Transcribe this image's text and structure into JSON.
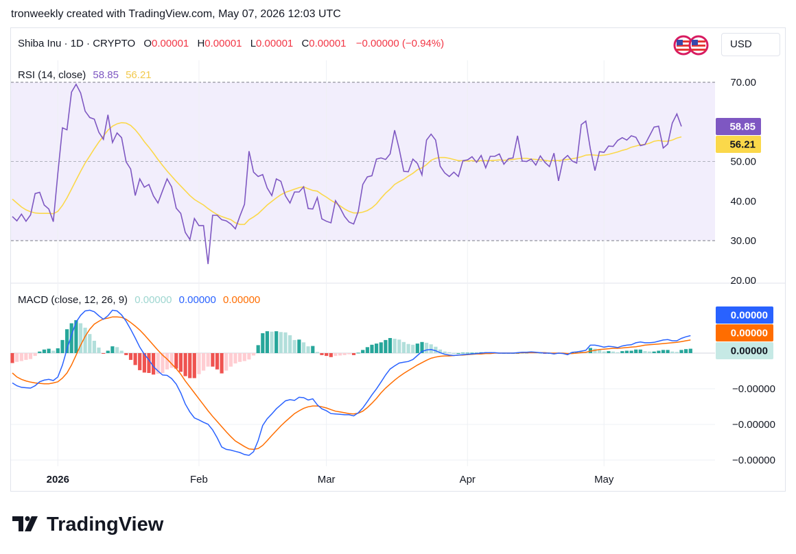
{
  "caption": "tronweekly created with TradingView.com, May 07, 2026 12:03 UTC",
  "header": {
    "symbol": "Shiba Inu · 1D · CRYPTO",
    "o_label": "O",
    "o_value": "0.00001",
    "h_label": "H",
    "h_value": "0.00001",
    "l_label": "L",
    "l_value": "0.00001",
    "c_label": "C",
    "c_value": "0.00001",
    "change": "−0.00000 (−0.94%)",
    "currency": "USD"
  },
  "colors": {
    "rsi": "#7e57c2",
    "rsi_ma": "#fbd84a",
    "rsi_band": "#f2eefc",
    "macd": "#2962ff",
    "signal": "#ff6d00",
    "hist_up_strong": "#26a69a",
    "hist_up_weak": "#b2dfdb",
    "hist_down_strong": "#ef5350",
    "hist_down_weak": "#ffcdd2",
    "negative": "#f23645"
  },
  "chart_data": [
    {
      "type": "line",
      "title": "RSI (14, close)",
      "legend_values": [
        "58.85",
        "56.21"
      ],
      "y_ticks": [
        "70.00",
        "50.00",
        "40.00",
        "30.00",
        "20.00"
      ],
      "ylim": [
        18,
        73
      ],
      "bands": [
        30,
        50,
        70
      ],
      "last_labels": [
        "58.85",
        "56.21"
      ],
      "series": [
        {
          "values": [
            36.1,
            35,
            36.7,
            34.9,
            36.5,
            41.9,
            42.2,
            39,
            38,
            34.8,
            47,
            58.5,
            58,
            67.5,
            69.5,
            67.3,
            62.7,
            61.1,
            60.7,
            57.4,
            55.6,
            61.8,
            54.8,
            57.2,
            56,
            49.9,
            48.1,
            41.4,
            45.6,
            43.5,
            44.2,
            41.3,
            39.5,
            42.6,
            45.6,
            43.6,
            38.2,
            36.9,
            32.1,
            30.3,
            35.6,
            33.8,
            33.8,
            24.1,
            36.4,
            36.4,
            35.3,
            35,
            34.2,
            33,
            36.2,
            39.2,
            52.6,
            47.3,
            46.2,
            46.7,
            43.3,
            41.4,
            45.6,
            45,
            41.3,
            39.5,
            42.3,
            42.3,
            43.6,
            38.1,
            38,
            40.9,
            35.5,
            34.9,
            34.5,
            40.1,
            38.3,
            36.1,
            34.7,
            34.2,
            37.4,
            44.2,
            46.1,
            46.4,
            50.6,
            50.9,
            50.5,
            51.9,
            57.9,
            53.1,
            47.5,
            47.4,
            50.6,
            49.5,
            46.6,
            55.4,
            56.9,
            55.4,
            48.8,
            47.1,
            46.2,
            47.3,
            46.2,
            50.2,
            50.4,
            51.2,
            49.8,
            51.5,
            48.4,
            51.3,
            51.3,
            51.9,
            49.3,
            50.7,
            50.9,
            56.5,
            50.1,
            50,
            50.6,
            49.1,
            51.4,
            49.8,
            48.7,
            52.1,
            45.1,
            50.5,
            51.5,
            50.1,
            49.6,
            59.3,
            60.2,
            53.2,
            47.7,
            52.5,
            52.3,
            53.9,
            53.8,
            55.3,
            56,
            55.4,
            56.5,
            56.1,
            54,
            54.3,
            56.5,
            58.7,
            58.9,
            53.4,
            54.4,
            59.7,
            62,
            58.85
          ]
        },
        {
          "values": [
            40.5,
            39.5,
            38.5,
            37.8,
            37.3,
            37,
            36.9,
            36.9,
            36.9,
            36.8,
            37.4,
            38.9,
            40.8,
            43,
            45.3,
            47.5,
            49.6,
            51.4,
            53.2,
            54.9,
            56.4,
            57.9,
            58.9,
            59.5,
            59.8,
            59.7,
            59.1,
            58,
            56.6,
            55,
            53.6,
            52.1,
            50.5,
            49,
            47.6,
            46.3,
            45,
            43.8,
            42.6,
            41.4,
            40.4,
            39.7,
            39,
            38.1,
            37.3,
            36.6,
            36.1,
            35.7,
            35.3,
            34.5,
            34.1,
            34.1,
            35.3,
            36,
            36.8,
            37.9,
            39,
            39.9,
            40.8,
            41.6,
            42.2,
            42.6,
            43,
            43.4,
            43.6,
            43.1,
            42.7,
            42.5,
            41.7,
            41,
            40.2,
            39.5,
            38.8,
            38,
            37.4,
            37,
            37,
            37.2,
            37.6,
            38.3,
            39.3,
            40.7,
            42,
            43,
            44.2,
            44.9,
            45.5,
            46.3,
            47,
            47.9,
            48.4,
            49.2,
            50.3,
            50.8,
            51,
            51,
            50.8,
            50.5,
            50.2,
            50.2,
            50.1,
            50.2,
            50.1,
            50.2,
            50.2,
            50.2,
            50.3,
            50.4,
            50.3,
            50.4,
            50.5,
            50.7,
            50.8,
            50.8,
            50.6,
            50.5,
            50.4,
            50.3,
            50.1,
            50.3,
            50.2,
            50.4,
            50.5,
            50.7,
            50.9,
            51.2,
            51.6,
            51.7,
            51.6,
            51.5,
            51.6,
            51.8,
            52.1,
            52.4,
            52.8,
            53.1,
            53.6,
            53.9,
            54.2,
            54.3,
            54.6,
            55.1,
            55.3,
            55.1,
            55.1,
            55.4,
            55.9,
            56.21
          ]
        }
      ]
    },
    {
      "type": "line",
      "title": "MACD (close, 12, 26, 9)",
      "legend_values": [
        "0.00000",
        "0.00000",
        "0.00000"
      ],
      "y_ticks": [
        "−0.00000",
        "−0.00000",
        "−0.00000"
      ],
      "zero_label": "0.00000",
      "last_labels": [
        "0.00000",
        "0.00000",
        "0.00000"
      ],
      "x_ticks": [
        {
          "label": "2026",
          "index": 10
        },
        {
          "label": "Feb",
          "index": 41
        },
        {
          "label": "Mar",
          "index": 69
        },
        {
          "label": "Apr",
          "index": 100
        },
        {
          "label": "May",
          "index": 130
        }
      ],
      "units": "×1e-8 (approx.)",
      "series": [
        {
          "values": [
            -0.75,
            -0.82,
            -0.86,
            -0.87,
            -0.88,
            -0.82,
            -0.72,
            -0.68,
            -0.66,
            -0.69,
            -0.6,
            -0.3,
            0.1,
            0.45,
            0.78,
            0.95,
            1.06,
            1.08,
            1.04,
            0.94,
            0.85,
            0.94,
            1.08,
            1.06,
            0.96,
            0.8,
            0.6,
            0.38,
            0.15,
            -0.03,
            -0.17,
            -0.34,
            -0.45,
            -0.55,
            -0.56,
            -0.64,
            -0.78,
            -1.0,
            -1.28,
            -1.48,
            -1.63,
            -1.68,
            -1.74,
            -1.79,
            -1.93,
            -2.13,
            -2.36,
            -2.42,
            -2.44,
            -2.47,
            -2.5,
            -2.55,
            -2.57,
            -2.48,
            -2.2,
            -1.82,
            -1.65,
            -1.53,
            -1.4,
            -1.3,
            -1.2,
            -1.17,
            -1.19,
            -1.11,
            -1.12,
            -1.18,
            -1.15,
            -1.3,
            -1.4,
            -1.45,
            -1.52,
            -1.53,
            -1.54,
            -1.55,
            -1.55,
            -1.58,
            -1.5,
            -1.38,
            -1.22,
            -1.05,
            -0.9,
            -0.73,
            -0.55,
            -0.4,
            -0.32,
            -0.25,
            -0.23,
            -0.21,
            -0.16,
            -0.06,
            0.04,
            0.08,
            0.09,
            0.06,
            0.01,
            -0.03,
            -0.05,
            -0.06,
            -0.05,
            -0.04,
            -0.03,
            -0.02,
            -0.01,
            0.0,
            0.01,
            0.01,
            0.01,
            0.0,
            0.0,
            0.0,
            0.0,
            0.01,
            0.02,
            0.02,
            0.03,
            0.02,
            0.01,
            0.0,
            0.0,
            -0.02,
            0.0,
            -0.01,
            -0.04,
            0.02,
            0.03,
            0.05,
            0.07,
            0.2,
            0.2,
            0.18,
            0.15,
            0.17,
            0.16,
            0.14,
            0.18,
            0.2,
            0.21,
            0.26,
            0.28,
            0.26,
            0.26,
            0.27,
            0.3,
            0.33,
            0.34,
            0.31,
            0.31,
            0.37,
            0.41,
            0.44
          ]
        },
        {
          "values": [
            -0.5,
            -0.6,
            -0.66,
            -0.7,
            -0.73,
            -0.75,
            -0.76,
            -0.77,
            -0.77,
            -0.75,
            -0.72,
            -0.63,
            -0.5,
            -0.3,
            -0.05,
            0.2,
            0.42,
            0.6,
            0.73,
            0.8,
            0.86,
            0.88,
            0.91,
            0.91,
            0.9,
            0.85,
            0.77,
            0.68,
            0.58,
            0.46,
            0.33,
            0.2,
            0.07,
            -0.05,
            -0.15,
            -0.27,
            -0.39,
            -0.53,
            -0.7,
            -0.85,
            -1.0,
            -1.15,
            -1.3,
            -1.45,
            -1.59,
            -1.72,
            -1.85,
            -1.98,
            -2.1,
            -2.21,
            -2.28,
            -2.35,
            -2.41,
            -2.42,
            -2.4,
            -2.32,
            -2.2,
            -2.07,
            -1.95,
            -1.83,
            -1.72,
            -1.62,
            -1.52,
            -1.45,
            -1.39,
            -1.35,
            -1.33,
            -1.33,
            -1.35,
            -1.38,
            -1.42,
            -1.46,
            -1.48,
            -1.5,
            -1.52,
            -1.53,
            -1.51,
            -1.46,
            -1.37,
            -1.26,
            -1.14,
            -1.0,
            -0.88,
            -0.78,
            -0.68,
            -0.59,
            -0.51,
            -0.44,
            -0.37,
            -0.3,
            -0.24,
            -0.18,
            -0.13,
            -0.1,
            -0.08,
            -0.07,
            -0.07,
            -0.06,
            -0.05,
            -0.05,
            -0.04,
            -0.03,
            -0.02,
            -0.02,
            -0.01,
            -0.01,
            0.0,
            0.0,
            0.0,
            0.0,
            0.0,
            0.0,
            0.01,
            0.01,
            0.01,
            0.01,
            0.01,
            0.01,
            0.0,
            0.0,
            0.0,
            0.0,
            -0.01,
            -0.01,
            0.0,
            0.01,
            0.02,
            0.05,
            0.07,
            0.09,
            0.1,
            0.11,
            0.12,
            0.12,
            0.13,
            0.14,
            0.15,
            0.16,
            0.18,
            0.2,
            0.21,
            0.22,
            0.23,
            0.24,
            0.25,
            0.26,
            0.27,
            0.29,
            0.31,
            0.33
          ]
        },
        {
          "type": "bar",
          "values": [
            -0.25,
            -0.22,
            -0.2,
            -0.17,
            -0.15,
            -0.07,
            0.04,
            0.09,
            0.11,
            0.06,
            0.12,
            0.33,
            0.6,
            0.75,
            0.83,
            0.75,
            0.64,
            0.48,
            0.31,
            0.14,
            -0.01,
            0.06,
            0.17,
            0.15,
            0.06,
            -0.05,
            -0.17,
            -0.3,
            -0.43,
            -0.49,
            -0.5,
            -0.54,
            -0.52,
            -0.5,
            -0.41,
            -0.37,
            -0.39,
            -0.47,
            -0.58,
            -0.63,
            -0.63,
            -0.53,
            -0.44,
            -0.34,
            -0.34,
            -0.41,
            -0.51,
            -0.44,
            -0.34,
            -0.26,
            -0.22,
            -0.2,
            -0.16,
            -0.06,
            0.2,
            0.5,
            0.55,
            0.54,
            0.55,
            0.53,
            0.52,
            0.45,
            0.33,
            0.34,
            0.27,
            0.17,
            0.18,
            0.03,
            -0.05,
            -0.07,
            -0.1,
            -0.07,
            -0.06,
            -0.05,
            -0.03,
            -0.05,
            0.01,
            0.08,
            0.15,
            0.21,
            0.24,
            0.27,
            0.33,
            0.38,
            0.36,
            0.34,
            0.28,
            0.23,
            0.21,
            0.24,
            0.28,
            0.26,
            0.22,
            0.16,
            0.09,
            0.04,
            0.02,
            0.0,
            0.0,
            0.01,
            0.01,
            0.01,
            0.01,
            0.02,
            0.02,
            0.02,
            0.01,
            0.0,
            0.0,
            0.0,
            0.0,
            0.0,
            0.01,
            0.01,
            0.02,
            0.01,
            0.0,
            -0.01,
            0.0,
            -0.02,
            0.0,
            -0.01,
            -0.03,
            0.02,
            0.02,
            0.03,
            0.02,
            0.13,
            0.11,
            0.08,
            0.04,
            0.05,
            0.04,
            0.02,
            0.05,
            0.06,
            0.06,
            0.09,
            0.09,
            0.05,
            0.04,
            0.04,
            0.06,
            0.08,
            0.08,
            0.04,
            0.03,
            0.08,
            0.1,
            0.11
          ]
        }
      ]
    }
  ],
  "brand": {
    "name": "TradingView",
    "logo_icon": "tradingview-logo-icon"
  }
}
